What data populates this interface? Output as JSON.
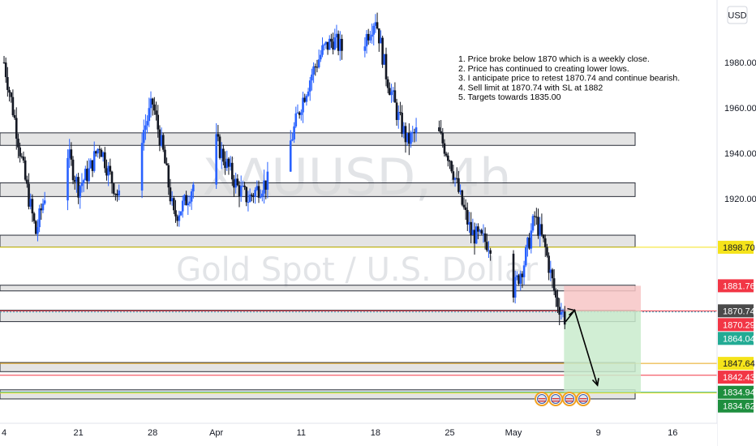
{
  "chart_data": {
    "type": "candlestick",
    "symbol": "XAUUSD",
    "timeframe": "4h",
    "description": "Gold Spot / U.S. Dollar",
    "currency": "USD",
    "watermark_title": "XAUUSD, 4h",
    "y_range": [
      1822,
      2006
    ],
    "y_ticks": [
      1920,
      1940,
      1960,
      1980
    ],
    "y_tick_labels": [
      "1920.00",
      "1940.00",
      "1960.00",
      "1980.00"
    ],
    "x_ticks": [
      {
        "label": "4",
        "date": "2023-03-14"
      },
      {
        "label": "21",
        "date": "2023-03-21"
      },
      {
        "label": "28",
        "date": "2023-03-28"
      },
      {
        "label": "Apr",
        "date": "2023-04-03"
      },
      {
        "label": "11",
        "date": "2023-04-11"
      },
      {
        "label": "18",
        "date": "2023-04-18"
      },
      {
        "label": "25",
        "date": "2023-04-25"
      },
      {
        "label": "May",
        "date": "2023-05-01"
      },
      {
        "label": "9",
        "date": "2023-05-09"
      },
      {
        "label": "16",
        "date": "2023-05-16"
      }
    ],
    "price_path": [
      [
        "2023-03-14",
        1980
      ],
      [
        "2023-03-15",
        1955
      ],
      [
        "2023-03-16",
        1928
      ],
      [
        "2023-03-17",
        1905
      ],
      [
        "2023-03-18",
        1925
      ],
      [
        "2023-03-19",
        1948
      ],
      [
        "2023-03-20",
        1940
      ],
      [
        "2023-03-21",
        1925
      ],
      [
        "2023-03-22",
        1932
      ],
      [
        "2023-03-23",
        1944
      ],
      [
        "2023-03-24",
        1930
      ],
      [
        "2023-03-25",
        1918
      ],
      [
        "2023-03-26",
        1928
      ],
      [
        "2023-03-27",
        1948
      ],
      [
        "2023-03-28",
        1962
      ],
      [
        "2023-03-29",
        1940
      ],
      [
        "2023-03-30",
        1912
      ],
      [
        "2023-03-31",
        1918
      ],
      [
        "2023-04-01",
        1928
      ],
      [
        "2023-04-02",
        1935
      ],
      [
        "2023-04-03",
        1945
      ],
      [
        "2023-04-04",
        1935
      ],
      [
        "2023-04-05",
        1925
      ],
      [
        "2023-04-06",
        1920
      ],
      [
        "2023-04-07",
        1925
      ],
      [
        "2023-04-08",
        1928
      ],
      [
        "2023-04-09",
        1935
      ],
      [
        "2023-04-10",
        1945
      ],
      [
        "2023-04-11",
        1962
      ],
      [
        "2023-04-12",
        1975
      ],
      [
        "2023-04-13",
        1985
      ],
      [
        "2023-04-14",
        1990
      ],
      [
        "2023-04-15",
        1985
      ],
      [
        "2023-04-16",
        1980
      ],
      [
        "2023-04-17",
        1990
      ],
      [
        "2023-04-18",
        2000
      ],
      [
        "2023-04-19",
        1975
      ],
      [
        "2023-04-20",
        1958
      ],
      [
        "2023-04-21",
        1945
      ],
      [
        "2023-04-22",
        1950
      ],
      [
        "2023-04-23",
        1955
      ],
      [
        "2023-04-24",
        1948
      ],
      [
        "2023-04-25",
        1938
      ],
      [
        "2023-04-26",
        1920
      ],
      [
        "2023-04-27",
        1905
      ],
      [
        "2023-04-28",
        1902
      ],
      [
        "2023-04-29",
        1900
      ],
      [
        "2023-04-30",
        1890
      ],
      [
        "2023-05-01",
        1880
      ],
      [
        "2023-05-02",
        1892
      ],
      [
        "2023-05-03",
        1912
      ],
      [
        "2023-05-04",
        1898
      ],
      [
        "2023-05-05",
        1876
      ],
      [
        "2023-05-06",
        1866
      ]
    ],
    "sr_zones": [
      [
        1943.5,
        1949
      ],
      [
        1921,
        1927
      ],
      [
        1898.8,
        1904
      ],
      [
        1879.5,
        1882
      ],
      [
        1866,
        1871
      ],
      [
        1844,
        1848
      ],
      [
        1832,
        1836
      ]
    ],
    "horizontal_lines": [
      {
        "value": 1898.7,
        "color": "#f5e31a"
      },
      {
        "value": 1870.74,
        "color": "#f23645"
      },
      {
        "value": 1870.29,
        "color": "#2e9bb8"
      },
      {
        "value": 1847.64,
        "color": "#e6a817"
      },
      {
        "value": 1842.43,
        "color": "#f23645"
      },
      {
        "value": 1834.94,
        "color": "#22ab94"
      },
      {
        "value": 1834.62,
        "color": "#f5e31a"
      }
    ],
    "position": {
      "type": "short",
      "start": "2023-05-05",
      "end": "2023-05-13",
      "entry": 1870.74,
      "stop_loss": 1881.76,
      "target": 1834.94
    },
    "projection": [
      [
        "2023-05-05",
        1866
      ],
      [
        "2023-05-06",
        1871
      ],
      [
        "2023-05-08",
        1838
      ]
    ],
    "price_tags": [
      {
        "value": 1898.7,
        "label": "1898.70",
        "bg": "#f5e31a",
        "fg": "#131722"
      },
      {
        "value": 1881.76,
        "label": "1881.76",
        "bg": "#f23645",
        "fg": "#ffffff"
      },
      {
        "value": 1870.74,
        "label": "1870.74",
        "bg": "#4a4a4a",
        "fg": "#ffffff"
      },
      {
        "value": 1870.29,
        "label": "1870.29",
        "bg": "#f23645",
        "fg": "#ffffff"
      },
      {
        "value": 1864.04,
        "label": "1864.04",
        "bg": "#22ab94",
        "fg": "#ffffff"
      },
      {
        "value": 1847.64,
        "label": "1847.64",
        "bg": "#f5e31a",
        "fg": "#131722"
      },
      {
        "value": 1842.43,
        "label": "1842.43",
        "bg": "#f23645",
        "fg": "#ffffff"
      },
      {
        "value": 1834.94,
        "label": "1834.94",
        "bg": "#1e8e3e",
        "fg": "#ffffff"
      },
      {
        "value": 1834.62,
        "label": "1834.62",
        "bg": "#1e8e3e",
        "fg": "#ffffff"
      }
    ],
    "notes": [
      "1. Price broke below 1870 which is a weekly close.",
      "2. Price has continued to creating lower lows.",
      "3. I anticipate price to retest 1870.74 and continue bearish.",
      "4. Sell limit at 1870.74 with SL at 1882",
      "5. Targets towards 1835.00"
    ],
    "event_icons": 4,
    "colors": {
      "bull": "#2962ff",
      "bear": "#131722",
      "zone_fill": "#d9d9d9",
      "zone_stroke": "#2a2e39",
      "stop_fill": "#f7c5c5",
      "target_fill": "#c9ebcc"
    }
  }
}
